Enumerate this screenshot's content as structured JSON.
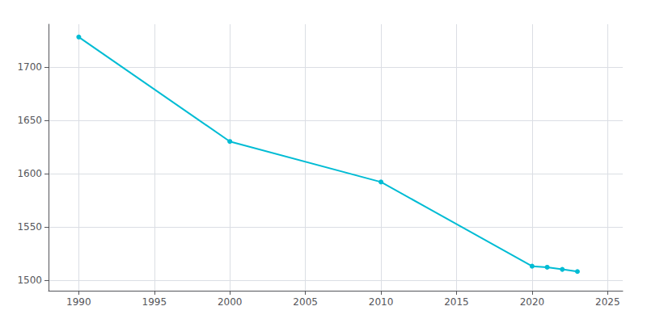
{
  "chart_data": {
    "type": "line",
    "x": [
      1990,
      2000,
      2010,
      2020,
      2021,
      2022,
      2023
    ],
    "values": [
      1728,
      1630,
      1592,
      1513,
      1512,
      1510,
      1508
    ],
    "color": "#00BCD4",
    "marker": "circle",
    "xlim": [
      1988,
      2026
    ],
    "xticks": [
      1990,
      1995,
      2000,
      2005,
      2010,
      2015,
      2020,
      2025
    ],
    "ylim": [
      1490,
      1740
    ],
    "yticks": [
      1500,
      1550,
      1600,
      1650,
      1700
    ],
    "grid": true
  }
}
